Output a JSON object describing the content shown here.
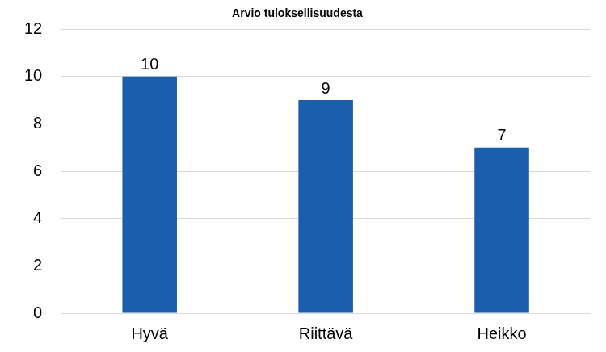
{
  "chart_data": {
    "type": "bar",
    "title": "Arvio tuloksellisuudesta",
    "categories": [
      "Hyvä",
      "Riittävä",
      "Heikko"
    ],
    "values": [
      10,
      9,
      7
    ],
    "color": "#1a5fac",
    "ylim": [
      0,
      12
    ],
    "yticks": [
      0,
      2,
      4,
      6,
      8,
      10,
      12
    ],
    "grid": true,
    "data_labels": true
  }
}
